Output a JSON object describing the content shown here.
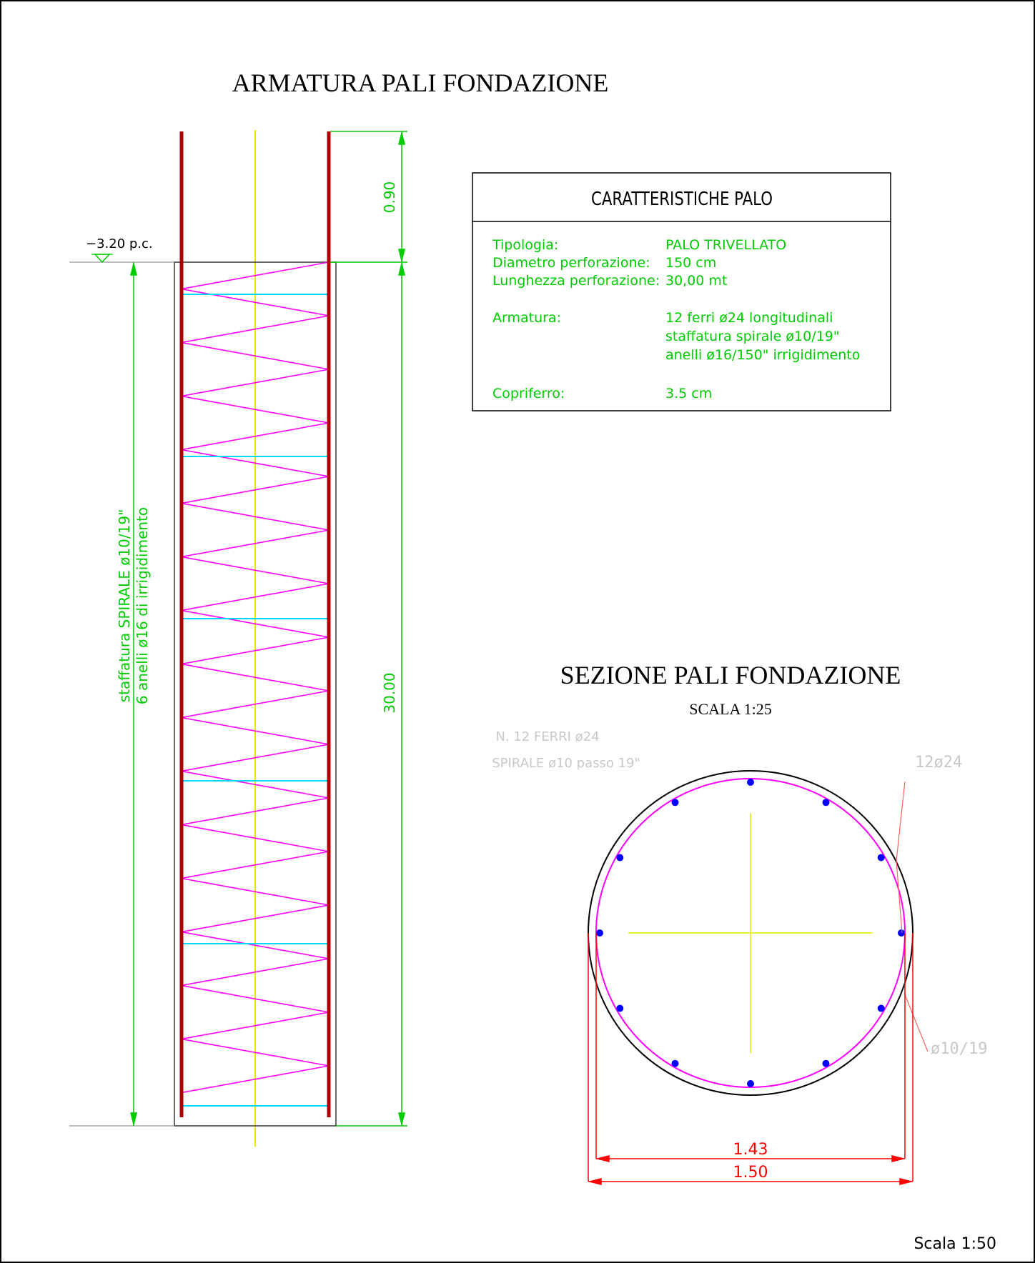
{
  "drawing": {
    "title": "ARMATURA PALI FONDAZIONE",
    "elevation_label": "−3.20 p.c.",
    "dim_top": "0.90",
    "dim_main": "30.00",
    "side_note_line1": "staffatura  SPIRALE  ø10/19\"",
    "side_note_line2": "6  anelli  ø16  di  irrigidimento",
    "scale_note": "Scala 1:50",
    "colors": {
      "frame": "#000000",
      "rebar": "#b00000",
      "spiral": "#ff00ff",
      "ring": "#00d8ff",
      "axis": "#e8e800",
      "dimension": "#00cc00",
      "section_dim": "#ff0000",
      "section_bar": "#0000ff",
      "faint_text": "#c8c8c8"
    }
  },
  "table": {
    "title": "CARATTERISTICHE PALO",
    "rows": [
      {
        "label": "Tipologia:",
        "values": [
          "PALO  TRIVELLATO"
        ]
      },
      {
        "label": "Diametro  perforazione:",
        "values": [
          "150  cm"
        ]
      },
      {
        "label": "Lunghezza  perforazione:",
        "values": [
          "30,00  mt"
        ]
      },
      {
        "label": "Armatura:",
        "values": [
          "12  ferri  ø24  longitudinali",
          "staffatura  spirale  ø10/19\"",
          "anelli  ø16/150\"  irrigidimento"
        ]
      },
      {
        "label": "Copriferro:",
        "values": [
          "3.5  cm"
        ]
      }
    ]
  },
  "section": {
    "title": "SEZIONE PALI FONDAZIONE",
    "scale": "SCALA 1:25",
    "faint_line1": "N.  12  FERRI  ø24",
    "faint_line2": "SPIRALE  ø10  passo  19\"",
    "callout_bars": "12ø24",
    "callout_spiral": "ø10/19",
    "dim_inner": "1.43",
    "dim_outer": "1.50",
    "bar_count": 12
  }
}
